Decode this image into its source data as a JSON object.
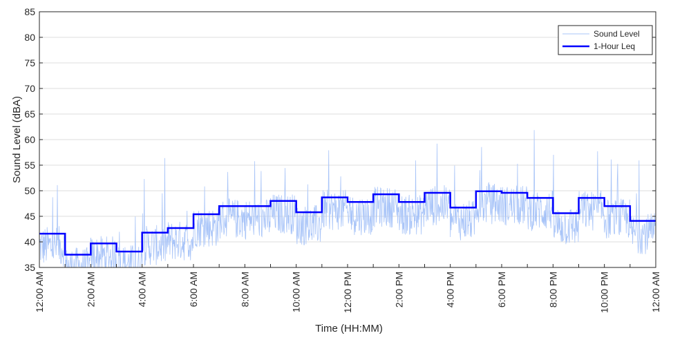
{
  "chart_data": {
    "type": "line",
    "title": "",
    "xlabel": "Time (HH:MM)",
    "ylabel": "Sound Level (dBA)",
    "ylim": [
      35,
      85
    ],
    "xlim_hours": [
      0,
      24
    ],
    "yticks": [
      35,
      40,
      45,
      50,
      55,
      60,
      65,
      70,
      75,
      80,
      85
    ],
    "xtick_labels": [
      "12:00 AM",
      "2:00 AM",
      "4:00 AM",
      "6:00 AM",
      "8:00 AM",
      "10:00 AM",
      "12:00 PM",
      "2:00 PM",
      "4:00 PM",
      "6:00 PM",
      "8:00 PM",
      "10:00 PM",
      "12:00 AM"
    ],
    "grid": "horizontal",
    "legend_position": "top-right",
    "series": [
      {
        "name": "Sound Level",
        "color": "#a8c4f8",
        "style": "thin noisy line, 1-minute samples fluctuating around the hourly Leq"
      },
      {
        "name": "1-Hour Leq",
        "color": "#0000ff",
        "style": "step",
        "hours": [
          0,
          1,
          2,
          3,
          4,
          5,
          6,
          7,
          8,
          9,
          10,
          11,
          12,
          13,
          14,
          15,
          16,
          17,
          18,
          19,
          20,
          21,
          22,
          23
        ],
        "values": [
          41.6,
          37.5,
          39.7,
          38.1,
          41.8,
          42.7,
          45.4,
          47.0,
          47.0,
          48.0,
          45.8,
          48.7,
          47.8,
          49.3,
          47.8,
          49.6,
          46.7,
          49.9,
          49.6,
          48.6,
          45.6,
          48.6,
          47.0,
          44.1
        ]
      }
    ]
  }
}
